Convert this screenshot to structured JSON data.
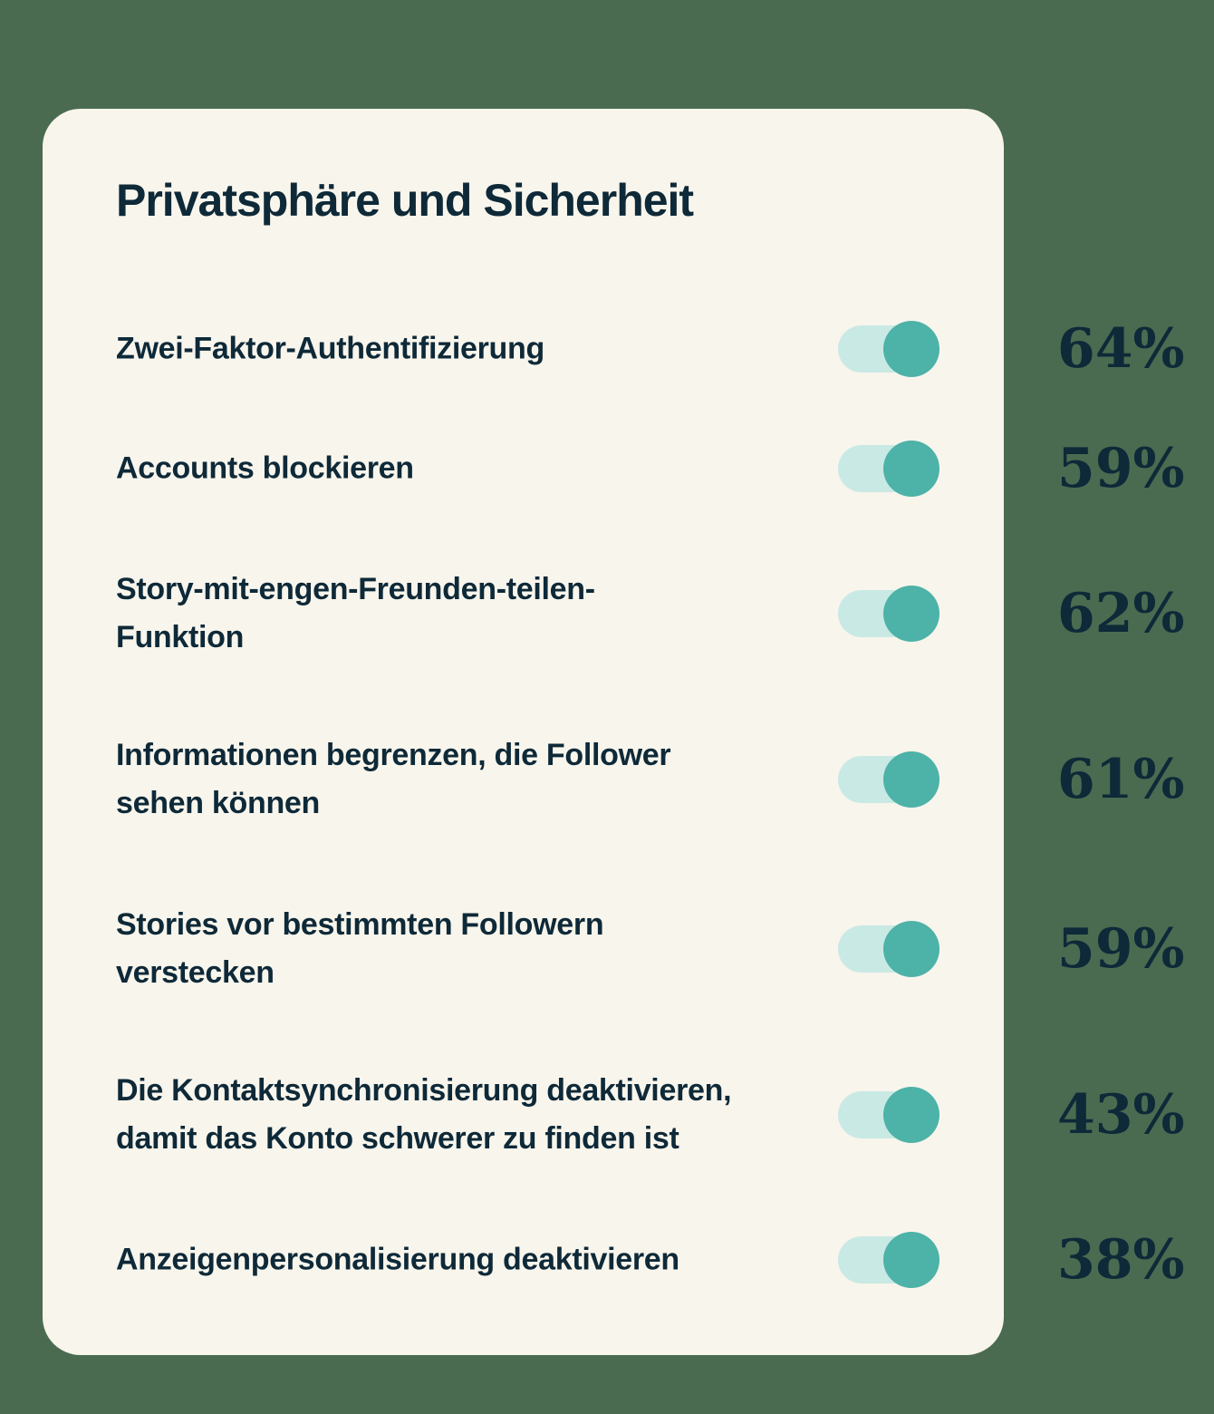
{
  "page": {
    "background_color": "#4A6B50"
  },
  "card": {
    "title": "Privatsphäre und Sicherheit",
    "background_color": "#F8F5EC",
    "text_color": "#0E2938",
    "toggle": {
      "track_color": "#C9E9E4",
      "knob_color": "#4DB2A8",
      "state": "on"
    },
    "items": [
      {
        "label": "Zwei-Faktor-Authentifizierung",
        "value": "64%",
        "toggle_on": true
      },
      {
        "label": "Accounts blockieren",
        "value": "59%",
        "toggle_on": true
      },
      {
        "label": "Story-mit-engen-Freunden-teilen-\nFunktion",
        "value": "62%",
        "toggle_on": true
      },
      {
        "label": "Informationen begrenzen, die Follower\nsehen können",
        "value": "61%",
        "toggle_on": true
      },
      {
        "label": "Stories vor bestimmten Followern\nverstecken",
        "value": "59%",
        "toggle_on": true
      },
      {
        "label": "Die Kontaktsynchronisierung deaktivieren,\ndamit das Konto schwerer zu finden ist",
        "value": "43%",
        "toggle_on": true
      },
      {
        "label": "Anzeigenpersonalisierung deaktivieren",
        "value": "38%",
        "toggle_on": true
      }
    ]
  },
  "chart_data": {
    "type": "table",
    "title": "Privatsphäre und Sicherheit",
    "categories": [
      "Zwei-Faktor-Authentifizierung",
      "Accounts blockieren",
      "Story-mit-engen-Freunden-teilen-Funktion",
      "Informationen begrenzen, die Follower sehen können",
      "Stories vor bestimmten Followern verstecken",
      "Die Kontaktsynchronisierung deaktivieren, damit das Konto schwerer zu finden ist",
      "Anzeigenpersonalisierung deaktivieren"
    ],
    "values": [
      64,
      59,
      62,
      61,
      59,
      43,
      38
    ],
    "unit": "%",
    "toggle_states": [
      "on",
      "on",
      "on",
      "on",
      "on",
      "on",
      "on"
    ],
    "legend_position": "none",
    "grid": false
  }
}
